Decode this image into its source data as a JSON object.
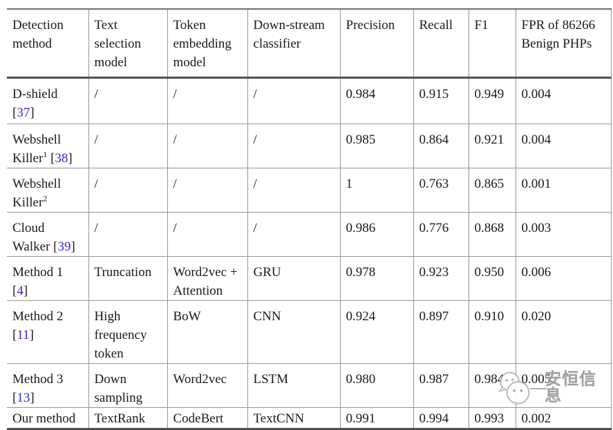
{
  "table": {
    "headers": [
      "Detection method",
      "Text selection model",
      "Token embedding model",
      "Down-stream classifier",
      "Precision",
      "Recall",
      "F1",
      "FPR of 86266 Benign PHPs"
    ],
    "rows": [
      {
        "method": {
          "name": "D-shield",
          "sup": "",
          "ref": "37"
        },
        "cells": [
          {
            "text": "/"
          },
          {
            "text": "/"
          },
          {
            "text": "/"
          },
          {
            "text": "0.984"
          },
          {
            "text": "0.915"
          },
          {
            "text": "0.949"
          },
          {
            "text": "0.004"
          }
        ]
      },
      {
        "method": {
          "name": "Webshell Killer",
          "sup": "1",
          "ref": "38"
        },
        "cells": [
          {
            "text": "/"
          },
          {
            "text": "/"
          },
          {
            "text": "/"
          },
          {
            "text": "0.985"
          },
          {
            "text": "0.864"
          },
          {
            "text": "0.921"
          },
          {
            "text": "0.004"
          }
        ]
      },
      {
        "method": {
          "name": "Webshell Killer",
          "sup": "2",
          "ref": ""
        },
        "cells": [
          {
            "text": "/"
          },
          {
            "text": "/"
          },
          {
            "text": "/"
          },
          {
            "text": "1",
            "bold": true
          },
          {
            "text": "0.763"
          },
          {
            "text": "0.865"
          },
          {
            "text": "0.001",
            "bold": true
          }
        ]
      },
      {
        "method": {
          "name": "Cloud Walker",
          "sup": "",
          "ref": "39"
        },
        "cells": [
          {
            "text": "/"
          },
          {
            "text": "/"
          },
          {
            "text": "/"
          },
          {
            "text": "0.986"
          },
          {
            "text": "0.776"
          },
          {
            "text": "0.868"
          },
          {
            "text": "0.003"
          }
        ]
      },
      {
        "method": {
          "name": "Method 1",
          "sup": "",
          "ref": "4"
        },
        "cells": [
          {
            "text": "Truncation"
          },
          {
            "text": "Word2vec + Attention"
          },
          {
            "text": "GRU"
          },
          {
            "text": "0.978"
          },
          {
            "text": "0.923"
          },
          {
            "text": "0.950"
          },
          {
            "text": "0.006"
          }
        ]
      },
      {
        "method": {
          "name": "Method 2",
          "sup": "",
          "ref": "11"
        },
        "cells": [
          {
            "text": "High frequency token"
          },
          {
            "text": "BoW"
          },
          {
            "text": "CNN"
          },
          {
            "text": "0.924"
          },
          {
            "text": "0.897"
          },
          {
            "text": "0.910"
          },
          {
            "text": "0.020"
          }
        ]
      },
      {
        "method": {
          "name": "Method 3",
          "sup": "",
          "ref": "13"
        },
        "cells": [
          {
            "text": "Down sampling"
          },
          {
            "text": "Word2vec"
          },
          {
            "text": "LSTM"
          },
          {
            "text": "0.980"
          },
          {
            "text": "0.987"
          },
          {
            "text": "0.984"
          },
          {
            "text": "0.005"
          }
        ]
      },
      {
        "method": {
          "name": "Our method",
          "sup": "",
          "ref": ""
        },
        "cells": [
          {
            "text": "TextRank"
          },
          {
            "text": "CodeBert"
          },
          {
            "text": "TextCNN"
          },
          {
            "text": "0.991"
          },
          {
            "text": "0.994",
            "bold": true
          },
          {
            "text": "0.993",
            "bold": true
          },
          {
            "text": "0.002"
          }
        ]
      }
    ]
  },
  "watermark": {
    "label": "安恒信息",
    "separator": "—",
    "icon": "chat-bubbles-icon"
  },
  "colors": {
    "citation_blue": "#2b2bd0",
    "text_black": "#1a1a1a",
    "border_gray": "#949494",
    "border_dark": "#4f4f4f",
    "watermark_gray": "#9a9a9a"
  }
}
